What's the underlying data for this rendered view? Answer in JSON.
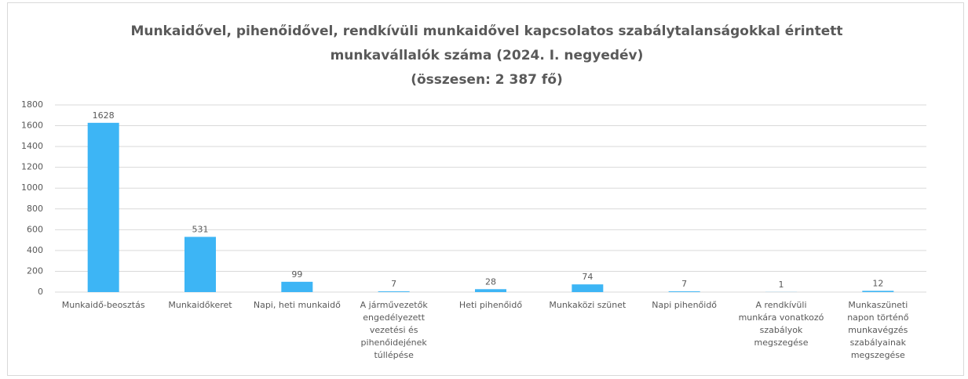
{
  "chart_data": {
    "type": "bar",
    "title": "Munkaidővel, pihenőidővel, rendkívüli munkaidővel kapcsolatos szabálytalanságokkal érintett munkavállalók száma (2024. I. negyedév)",
    "subtitle": "(összesen: 2 387 fő)",
    "categories": [
      "Munkaidő-beosztás",
      "Munkaidőkeret",
      "Napi, heti munkaidő",
      "A járművezetők engedélyezett vezetési és pihenőidejének túllépése",
      "Heti pihenőidő",
      "Munkaközi szünet",
      "Napi pihenőidő",
      "A rendkívüli munkára vonatkozó szabályok megszegése",
      "Munkaszüneti napon történő munkavégzés szabályainak megszegése"
    ],
    "values": [
      1628,
      531,
      99,
      7,
      28,
      74,
      7,
      1,
      12
    ],
    "color": "#3db5f5",
    "ylim": [
      0,
      1800
    ],
    "yticks": [
      0,
      200,
      400,
      600,
      800,
      1000,
      1200,
      1400,
      1600,
      1800
    ],
    "grid": true
  }
}
